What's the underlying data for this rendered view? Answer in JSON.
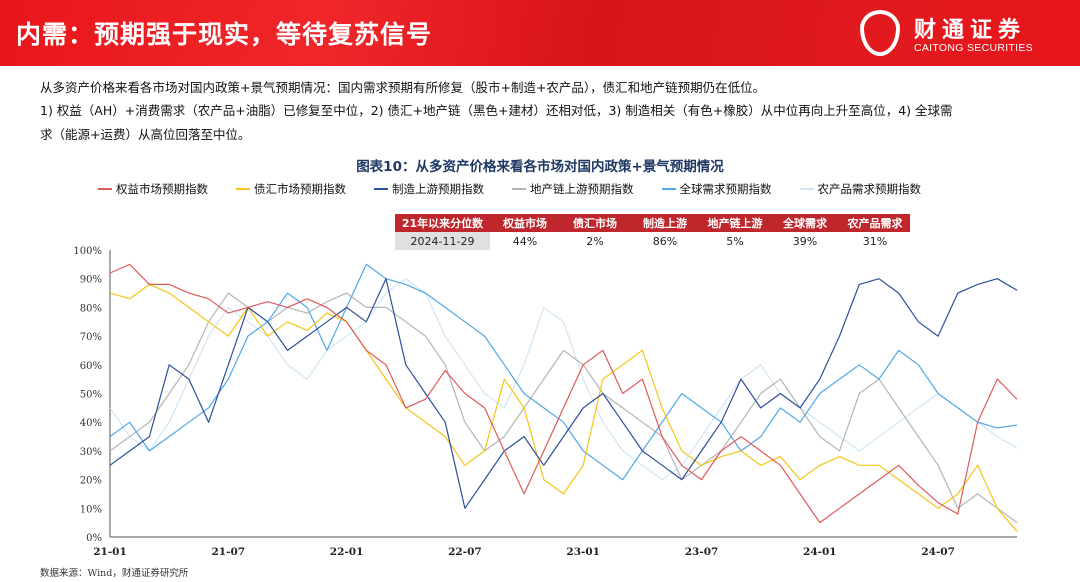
{
  "header": {
    "title": "内需：预期强于现实，等待复苏信号",
    "logo_cn": "财通证券",
    "logo_en": "CAITONG SECURITIES"
  },
  "body": {
    "lines": [
      "从多资产价格来看各市场对国内政策+景气预期情况：国内需求预期有所修复（股市+制造+农产品），债汇和地产链预期仍在低位。",
      "1) 权益（AH）+消费需求（农产品+油脂）已修复至中位，2) 债汇+地产链（黑色+建材）还相对低，3) 制造相关（有色+橡胶）从中位再向上升至高位，4) 全球需",
      "求（能源+运费）从高位回落至中位。"
    ]
  },
  "table": {
    "headers": [
      "21年以来分位数",
      "权益市场",
      "债汇市场",
      "制造上游",
      "地产链上游",
      "全球需求",
      "农产品需求"
    ],
    "row": [
      "2024-11-29",
      "44%",
      "2%",
      "86%",
      "5%",
      "39%",
      "31%"
    ]
  },
  "source": "数据来源：Wind，财通证券研究所",
  "chart_data": {
    "type": "line",
    "title": "图表10：从多资产价格来看各市场对国内政策+景气预期情况",
    "legend_position": "top",
    "grid": false,
    "ylim": [
      0,
      100
    ],
    "yticks": [
      "0%",
      "10%",
      "20%",
      "30%",
      "40%",
      "50%",
      "60%",
      "70%",
      "80%",
      "90%",
      "100%"
    ],
    "xticks": [
      "21-01",
      "21-07",
      "22-01",
      "22-07",
      "23-01",
      "23-07",
      "24-01",
      "24-07"
    ],
    "x": [
      "2021-01",
      "2021-02",
      "2021-03",
      "2021-04",
      "2021-05",
      "2021-06",
      "2021-07",
      "2021-08",
      "2021-09",
      "2021-10",
      "2021-11",
      "2021-12",
      "2022-01",
      "2022-02",
      "2022-03",
      "2022-04",
      "2022-05",
      "2022-06",
      "2022-07",
      "2022-08",
      "2022-09",
      "2022-10",
      "2022-11",
      "2022-12",
      "2023-01",
      "2023-02",
      "2023-03",
      "2023-04",
      "2023-05",
      "2023-06",
      "2023-07",
      "2023-08",
      "2023-09",
      "2023-10",
      "2023-11",
      "2023-12",
      "2024-01",
      "2024-02",
      "2024-03",
      "2024-04",
      "2024-05",
      "2024-06",
      "2024-07",
      "2024-08",
      "2024-09",
      "2024-10",
      "2024-11"
    ],
    "series": [
      {
        "name": "权益市场预期指数",
        "color": "#e05a5a",
        "values": [
          92,
          95,
          88,
          88,
          85,
          83,
          78,
          80,
          82,
          80,
          83,
          80,
          75,
          65,
          60,
          45,
          48,
          58,
          50,
          45,
          30,
          15,
          30,
          45,
          60,
          65,
          50,
          55,
          35,
          25,
          20,
          30,
          35,
          30,
          25,
          15,
          5,
          10,
          15,
          20,
          25,
          18,
          12,
          8,
          40,
          55,
          48
        ]
      },
      {
        "name": "债汇市场预期指数",
        "color": "#f5c518",
        "values": [
          85,
          83,
          88,
          85,
          80,
          75,
          70,
          80,
          70,
          75,
          72,
          78,
          75,
          65,
          55,
          45,
          40,
          35,
          25,
          30,
          55,
          45,
          20,
          15,
          25,
          55,
          60,
          65,
          45,
          30,
          25,
          28,
          30,
          25,
          28,
          20,
          25,
          28,
          25,
          25,
          20,
          15,
          10,
          15,
          25,
          10,
          2
        ]
      },
      {
        "name": "制造上游预期指数",
        "color": "#2e4f9a",
        "values": [
          25,
          30,
          35,
          60,
          55,
          40,
          60,
          80,
          75,
          65,
          70,
          75,
          80,
          75,
          90,
          60,
          50,
          40,
          10,
          20,
          30,
          35,
          25,
          35,
          45,
          50,
          40,
          30,
          25,
          20,
          30,
          40,
          55,
          45,
          50,
          45,
          55,
          70,
          88,
          90,
          85,
          75,
          70,
          85,
          88,
          90,
          86
        ]
      },
      {
        "name": "地产链上游预期指数",
        "color": "#b5b5b5",
        "values": [
          30,
          35,
          40,
          50,
          60,
          75,
          85,
          80,
          75,
          80,
          78,
          82,
          85,
          80,
          80,
          75,
          70,
          60,
          40,
          30,
          35,
          45,
          55,
          65,
          60,
          50,
          45,
          40,
          35,
          20,
          25,
          30,
          40,
          50,
          55,
          45,
          35,
          30,
          50,
          55,
          45,
          35,
          25,
          10,
          15,
          10,
          5
        ]
      },
      {
        "name": "全球需求预期指数",
        "color": "#4fa8e8",
        "values": [
          35,
          40,
          30,
          35,
          40,
          45,
          55,
          70,
          75,
          85,
          80,
          65,
          80,
          95,
          90,
          88,
          85,
          80,
          75,
          70,
          60,
          50,
          45,
          40,
          30,
          25,
          20,
          30,
          40,
          50,
          45,
          40,
          30,
          35,
          45,
          40,
          50,
          55,
          60,
          55,
          65,
          60,
          50,
          45,
          40,
          38,
          39
        ]
      },
      {
        "name": "农产品需求预期指数",
        "color": "#cfe6f7",
        "values": [
          45,
          35,
          30,
          40,
          55,
          70,
          80,
          75,
          70,
          60,
          55,
          65,
          70,
          75,
          85,
          90,
          85,
          70,
          60,
          50,
          45,
          60,
          80,
          75,
          55,
          40,
          30,
          25,
          20,
          25,
          35,
          45,
          55,
          60,
          50,
          45,
          40,
          35,
          30,
          35,
          40,
          45,
          50,
          45,
          40,
          35,
          31
        ]
      }
    ]
  }
}
